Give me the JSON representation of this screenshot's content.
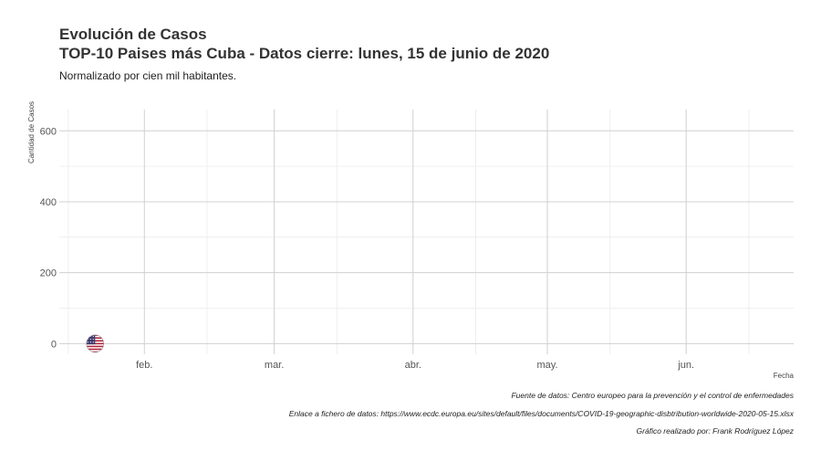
{
  "header": {
    "title_line1": "Evolución de Casos",
    "title_line2": "TOP-10 Paises más Cuba - Datos cierre: lunes, 15 de junio de 2020",
    "subtitle": "Normalizado por cien mil habitantes."
  },
  "captions": {
    "source": "Fuente de datos: Centro europeo para la prevención y el control de enfermedades",
    "link": "Enlace a fichero de datos: https://www.ecdc.europa.eu/sites/default/files/documents/COVID-19-geographic-disbtribution-worldwide-2020-05-15.xlsx",
    "author": "Gráfico realizado por: Frank Rodríguez López"
  },
  "chart_data": {
    "type": "scatter",
    "xlabel": "Fecha",
    "ylabel": "Cantidad de Casos",
    "x_range": [
      "2020-01-13",
      "2020-06-25"
    ],
    "ylim": [
      -30,
      660
    ],
    "x_ticks": [
      {
        "date": "2020-02-01",
        "label": "feb."
      },
      {
        "date": "2020-03-01",
        "label": "mar."
      },
      {
        "date": "2020-04-01",
        "label": "abr."
      },
      {
        "date": "2020-05-01",
        "label": "may."
      },
      {
        "date": "2020-06-01",
        "label": "jun."
      }
    ],
    "x_minor_ticks": [
      "2020-01-15",
      "2020-02-15",
      "2020-03-15",
      "2020-04-15",
      "2020-05-15",
      "2020-06-15"
    ],
    "y_ticks": [
      0,
      200,
      400,
      600
    ],
    "y_minor_ticks": [
      100,
      300,
      500
    ],
    "grid": true,
    "series": [
      {
        "name": "",
        "icon": "us-flag-icon",
        "points": [
          {
            "x": "2020-01-21",
            "y": 0
          }
        ]
      }
    ]
  }
}
